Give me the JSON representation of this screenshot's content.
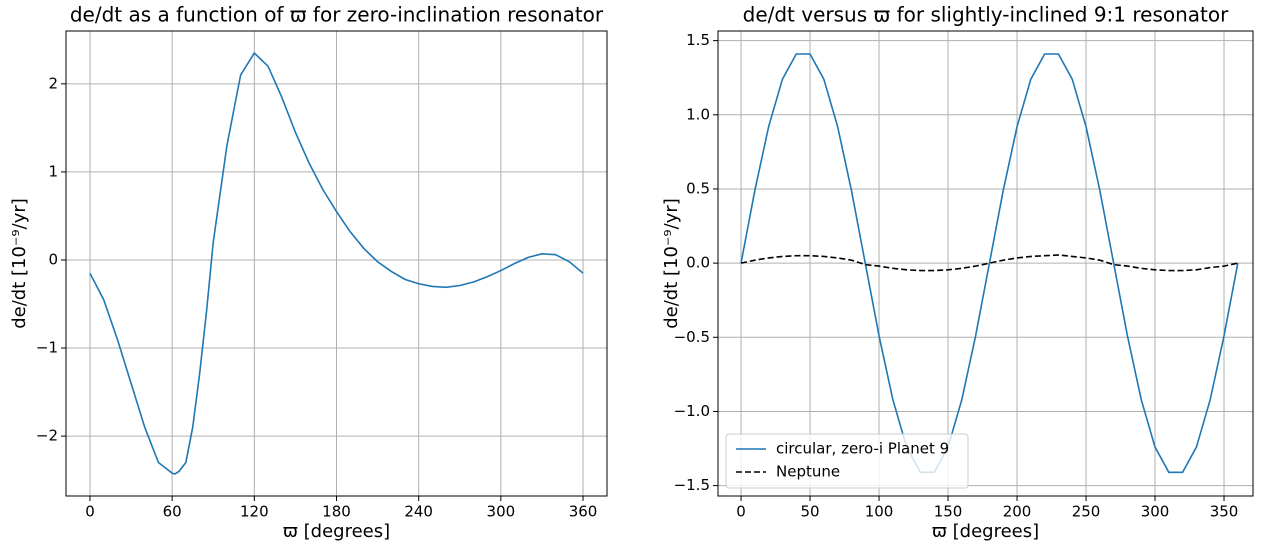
{
  "chart_data": [
    {
      "type": "line",
      "title": "de/dt as a function of ϖ for zero-inclination resonator",
      "xlabel": "ϖ [degrees]",
      "ylabel": "de/dt [10⁻⁹/yr]",
      "x": [
        0,
        10,
        20,
        30,
        40,
        50,
        60,
        62,
        65,
        70,
        75,
        80,
        85,
        90,
        100,
        110,
        120,
        130,
        140,
        150,
        160,
        170,
        180,
        190,
        200,
        210,
        220,
        230,
        240,
        250,
        260,
        270,
        280,
        290,
        300,
        310,
        320,
        330,
        340,
        350,
        360
      ],
      "values": [
        -0.15,
        -0.45,
        -0.9,
        -1.4,
        -1.9,
        -2.3,
        -2.42,
        -2.43,
        -2.4,
        -2.3,
        -1.9,
        -1.3,
        -0.6,
        0.2,
        1.3,
        2.1,
        2.35,
        2.2,
        1.85,
        1.45,
        1.1,
        0.8,
        0.55,
        0.32,
        0.13,
        -0.02,
        -0.13,
        -0.22,
        -0.27,
        -0.3,
        -0.31,
        -0.29,
        -0.25,
        -0.19,
        -0.12,
        -0.04,
        0.03,
        0.07,
        0.06,
        -0.02,
        -0.15
      ],
      "color": "#1f77b4",
      "grid": true,
      "xlim": [
        -17.5,
        377.5
      ],
      "ylim": [
        -2.68,
        2.6
      ],
      "xticks": [
        0,
        60,
        120,
        180,
        240,
        300,
        360
      ],
      "yticks": [
        {
          "value": -2,
          "label": "−2"
        },
        {
          "value": -1,
          "label": "−1"
        },
        0,
        1,
        2
      ]
    },
    {
      "type": "line",
      "title": "de/dt versus ϖ for slightly-inclined 9:1 resonator",
      "xlabel": "ϖ [degrees]",
      "ylabel": "de/dt [10⁻⁹/yr]",
      "x": [
        0,
        10,
        20,
        30,
        40,
        50,
        60,
        70,
        80,
        90,
        100,
        110,
        120,
        130,
        140,
        150,
        160,
        170,
        180,
        190,
        200,
        210,
        220,
        230,
        240,
        250,
        260,
        270,
        280,
        290,
        300,
        310,
        320,
        330,
        340,
        350,
        360
      ],
      "series": [
        {
          "name": "circular, zero-i Planet 9",
          "color": "#1f77b4",
          "linestyle": "solid",
          "values": [
            0,
            0.49,
            0.92,
            1.24,
            1.41,
            1.41,
            1.24,
            0.92,
            0.49,
            0,
            -0.49,
            -0.92,
            -1.24,
            -1.41,
            -1.41,
            -1.24,
            -0.92,
            -0.49,
            0,
            0.49,
            0.92,
            1.24,
            1.41,
            1.41,
            1.24,
            0.92,
            0.49,
            0,
            -0.49,
            -0.92,
            -1.24,
            -1.41,
            -1.41,
            -1.24,
            -0.92,
            -0.49,
            0
          ]
        },
        {
          "name": "Neptune",
          "color": "#000000",
          "linestyle": "dashed",
          "values": [
            0,
            0.02,
            0.035,
            0.045,
            0.05,
            0.05,
            0.045,
            0.035,
            0.02,
            -0.01,
            -0.02,
            -0.035,
            -0.045,
            -0.05,
            -0.05,
            -0.045,
            -0.035,
            -0.02,
            0,
            0.02,
            0.035,
            0.045,
            0.05,
            0.055,
            0.045,
            0.035,
            0.02,
            -0.01,
            -0.02,
            -0.035,
            -0.045,
            -0.05,
            -0.05,
            -0.045,
            -0.03,
            -0.02,
            0
          ]
        }
      ],
      "grid": true,
      "legend": "lower left",
      "xlim": [
        -16.7,
        371
      ],
      "ylim": [
        -1.57,
        1.565
      ],
      "xticks": [
        0,
        50,
        100,
        150,
        200,
        250,
        300,
        350
      ],
      "yticks": [
        {
          "value": -1.5,
          "label": "−1.5"
        },
        {
          "value": -1.0,
          "label": "−1.0"
        },
        {
          "value": -0.5,
          "label": "−0.5"
        },
        {
          "value": 0,
          "label": "0.0"
        },
        0.5,
        {
          "value": 1.0,
          "label": "1.0"
        },
        1.5
      ]
    }
  ]
}
